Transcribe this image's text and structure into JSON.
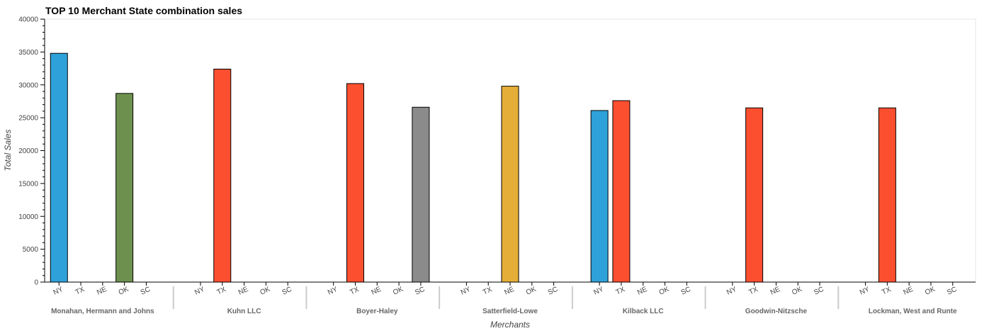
{
  "chart_data": {
    "type": "bar",
    "title": "TOP 10 Merchant State combination sales",
    "xlabel": "Merchants",
    "ylabel": "Total Sales",
    "ylim": [
      0,
      40000
    ],
    "y_ticks": [
      0,
      5000,
      10000,
      15000,
      20000,
      25000,
      30000,
      35000,
      40000
    ],
    "states": [
      "NY",
      "TX",
      "NE",
      "OK",
      "SC"
    ],
    "state_colors": {
      "NY": "#2fa1da",
      "TX": "#fc4f30",
      "NE": "#e5ae38",
      "OK": "#6d904f",
      "SC": "#8b8b8b"
    },
    "groups": [
      {
        "merchant": "Monahan, Hermann and Johns",
        "values": {
          "NY": 34800,
          "OK": 28700
        }
      },
      {
        "merchant": "Kuhn LLC",
        "values": {
          "TX": 32400
        }
      },
      {
        "merchant": "Boyer-Haley",
        "values": {
          "TX": 30200,
          "SC": 26600
        }
      },
      {
        "merchant": "Satterfield-Lowe",
        "values": {
          "NE": 29800
        }
      },
      {
        "merchant": "Kilback LLC",
        "values": {
          "NY": 26100,
          "TX": 27600
        }
      },
      {
        "merchant": "Goodwin-Nitzsche",
        "values": {
          "TX": 26500
        }
      },
      {
        "merchant": "Lockman, West and Runte",
        "values": {
          "TX": 26500
        }
      }
    ],
    "grid": false,
    "legend": "none"
  }
}
